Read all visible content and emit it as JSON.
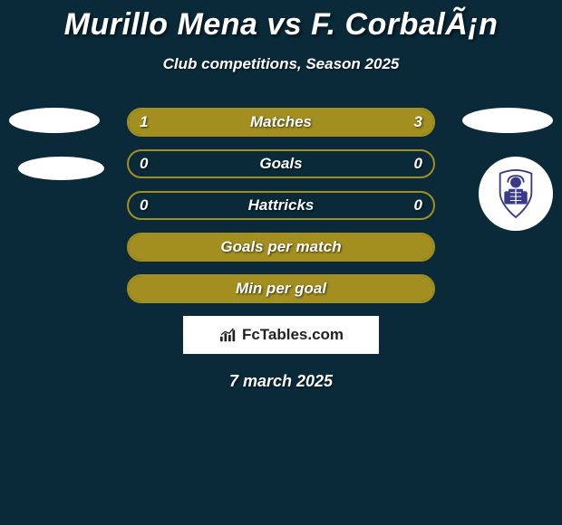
{
  "background_color": "#0a2a3a",
  "title": "Murillo Mena vs F. CorbalÃ¡n",
  "title_fontsize": 34,
  "title_color": "#ffffff",
  "subtitle": "Club competitions, Season 2025",
  "subtitle_fontsize": 17,
  "subtitle_color": "#ffffff",
  "left_badges": {
    "badge1": {
      "type": "ellipse",
      "color": "#ffffff"
    },
    "badge2": {
      "type": "ellipse",
      "color": "#ffffff"
    }
  },
  "right_badges": {
    "badge1": {
      "type": "ellipse",
      "color": "#ffffff"
    },
    "badge2": {
      "type": "crest",
      "bg": "#ffffff",
      "crest_color": "#3a3a8a"
    }
  },
  "bars": {
    "border_color": "#a38f1f",
    "fill_color_left": "#a38f1f",
    "fill_color_right": "#a38f1f",
    "empty_color": "transparent",
    "label_color": "#ffffff",
    "value_color": "#ffffff",
    "label_fontsize": 17,
    "rows": [
      {
        "label": "Matches",
        "left_val": "1",
        "right_val": "3",
        "left_pct": 25,
        "right_pct": 75
      },
      {
        "label": "Goals",
        "left_val": "0",
        "right_val": "0",
        "left_pct": 0,
        "right_pct": 0
      },
      {
        "label": "Hattricks",
        "left_val": "0",
        "right_val": "0",
        "left_pct": 0,
        "right_pct": 0
      },
      {
        "label": "Goals per match",
        "left_val": "",
        "right_val": "",
        "left_pct": 100,
        "right_pct": 0
      },
      {
        "label": "Min per goal",
        "left_val": "",
        "right_val": "",
        "left_pct": 100,
        "right_pct": 0
      }
    ]
  },
  "brand": {
    "text": "FcTables.com",
    "bg": "#ffffff",
    "text_color": "#222222",
    "icon_color": "#222222"
  },
  "date": "7 march 2025",
  "date_fontsize": 18,
  "date_color": "#ffffff"
}
